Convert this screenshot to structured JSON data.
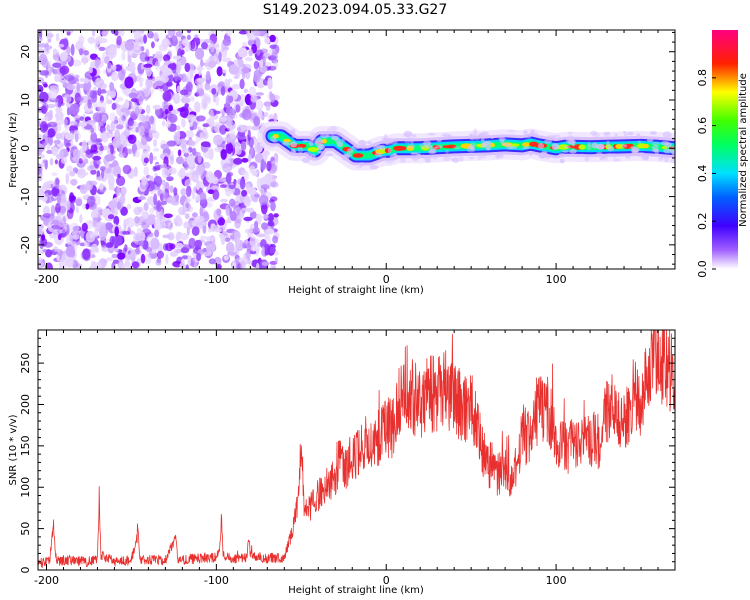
{
  "figure": {
    "title": "S149.2023.094.05.33.G27"
  },
  "chart_data": [
    {
      "type": "heatmap",
      "xlabel": "Height of straight line (km)",
      "ylabel": "Frequency (Hz)",
      "xlim": [
        -205,
        170
      ],
      "ylim": [
        -25,
        24.5
      ],
      "x_ticks": [
        -200,
        -100,
        0,
        100
      ],
      "y_ticks": [
        -20,
        -10,
        0,
        10,
        20
      ],
      "noise_region_x": [
        -205,
        -67
      ],
      "signal_region_x": [
        -67,
        170
      ],
      "ridge": {
        "x": [
          -67,
          -62,
          -58,
          -54,
          -50,
          -46,
          -42,
          -38,
          -34,
          -30,
          -26,
          -22,
          -18,
          -14,
          -10,
          -6,
          -2,
          2,
          6,
          10,
          20,
          30,
          40,
          50,
          60,
          70,
          80,
          85,
          90,
          95,
          100,
          105,
          110,
          120,
          130,
          140,
          150,
          160,
          170
        ],
        "y": [
          2.5,
          2.5,
          1.5,
          0.5,
          0.5,
          0.5,
          -0.5,
          1.5,
          1.5,
          1.5,
          0.5,
          -0.5,
          -1.5,
          -1.5,
          -1.5,
          -1.0,
          -0.5,
          -0.5,
          0.0,
          0.0,
          0.0,
          0.2,
          0.4,
          0.5,
          0.6,
          0.8,
          0.6,
          1.0,
          0.6,
          0.3,
          0.0,
          0.3,
          0.3,
          0.2,
          0.3,
          0.4,
          0.5,
          0.3,
          0.0
        ]
      },
      "colorbar": {
        "label": "Normalized spectral amplitude",
        "range": [
          0,
          1
        ],
        "ticks": [
          "0.0",
          "0.2",
          "0.4",
          "0.6",
          "0.8"
        ],
        "colormap": [
          "#ffffff",
          "#7a00ff",
          "#0000ff",
          "#00ffff",
          "#00ff00",
          "#ffff00",
          "#ff0000",
          "#ff00aa"
        ]
      }
    },
    {
      "type": "line",
      "xlabel": "Height of straight line (km)",
      "ylabel": "SNR (10 * v/v)",
      "xlim": [
        -205,
        170
      ],
      "ylim": [
        0,
        290
      ],
      "x_ticks": [
        -200,
        -100,
        0,
        100
      ],
      "y_ticks": [
        0,
        50,
        100,
        150,
        200,
        250
      ],
      "color": "#e8302e",
      "series": [
        {
          "x": [
            -205,
            -198,
            -196,
            -195,
            -194,
            -190,
            -175,
            -170,
            -169,
            -168,
            -160,
            -150,
            -146,
            -145,
            -144,
            -130,
            -124,
            -123,
            -122,
            -110,
            -100,
            -98,
            -97,
            -96,
            -90,
            -82,
            -81,
            -80,
            -72,
            -60,
            -55,
            -52,
            -50,
            -48,
            -45,
            -40,
            -35,
            -30,
            -27,
            -25,
            -20,
            -15,
            -10,
            -5,
            0,
            5,
            10,
            15,
            20,
            25,
            30,
            35,
            40,
            45,
            50,
            55,
            60,
            62,
            65,
            70,
            75,
            80,
            85,
            90,
            95,
            100,
            105,
            110,
            115,
            120,
            125,
            130,
            135,
            140,
            145,
            150,
            155,
            158,
            160,
            162,
            165,
            170
          ],
          "y": [
            8,
            10,
            60,
            25,
            10,
            12,
            10,
            12,
            88,
            18,
            10,
            12,
            45,
            14,
            12,
            12,
            40,
            16,
            12,
            14,
            15,
            30,
            58,
            18,
            14,
            15,
            42,
            18,
            14,
            15,
            50,
            80,
            150,
            70,
            75,
            90,
            105,
            110,
            140,
            120,
            130,
            150,
            160,
            155,
            170,
            175,
            225,
            210,
            200,
            215,
            210,
            220,
            210,
            195,
            200,
            160,
            120,
            130,
            115,
            120,
            110,
            165,
            160,
            200,
            195,
            160,
            145,
            155,
            150,
            160,
            155,
            190,
            200,
            175,
            215,
            205,
            235,
            280,
            260,
            255,
            250,
            235
          ]
        }
      ]
    }
  ]
}
